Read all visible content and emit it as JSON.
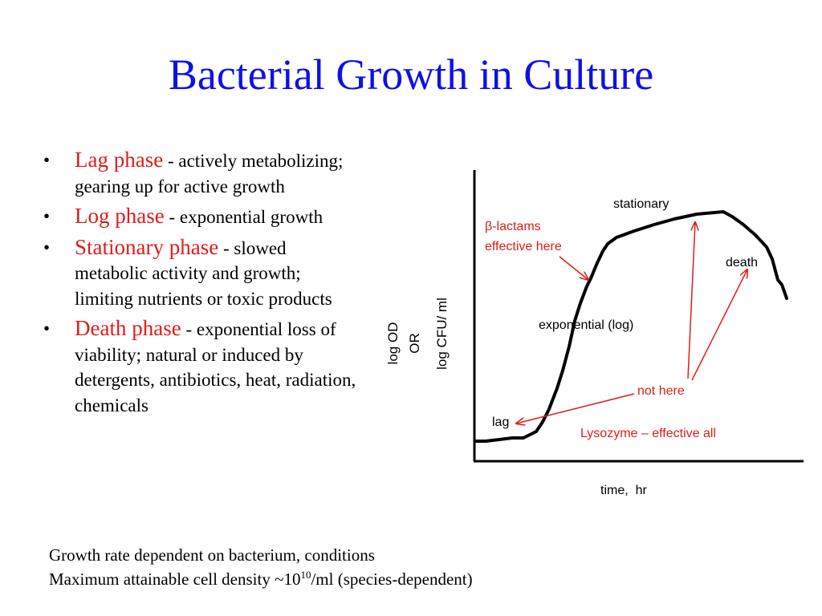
{
  "title": "Bacterial Growth in Culture",
  "bullets": [
    {
      "phase": "Lag phase",
      "text": " - actively metabolizing; gearing up for active growth"
    },
    {
      "phase": "Log phase",
      "text": " - exponential growth"
    },
    {
      "phase": "Stationary phase",
      "text": " - slowed metabolic activity and growth; limiting nutrients or toxic products"
    },
    {
      "phase": "Death phase",
      "text": " - exponential loss of viability; natural or induced by detergents, antibiotics, heat, radiation, chemicals"
    }
  ],
  "bullet_symbol": "•",
  "notes": {
    "line1": "Growth rate dependent on bacterium, conditions",
    "line2_prefix": "Maximum attainable cell density ~10",
    "line2_exponent": "10",
    "line2_suffix": "/ml (species-dependent)"
  },
  "diagram": {
    "x_axis_label": "time,  hr",
    "y_axis_label_1": "log OD",
    "y_axis_label_2": "OR",
    "y_axis_label_3": "log CFU/ ml",
    "phase_labels": {
      "lag": "lag",
      "exponential": "exponential (log)",
      "stationary": "stationary",
      "death": "death"
    },
    "annotations": {
      "beta_line1": "β-lactams",
      "beta_line2": "effective here",
      "not_here": "not here",
      "lysozyme": "Lysozyme – effective all"
    },
    "colors": {
      "title": "#1010e6",
      "phase_text": "#e11b1b",
      "annotation_arrow": "#e11b1b",
      "curve": "#000000"
    }
  }
}
